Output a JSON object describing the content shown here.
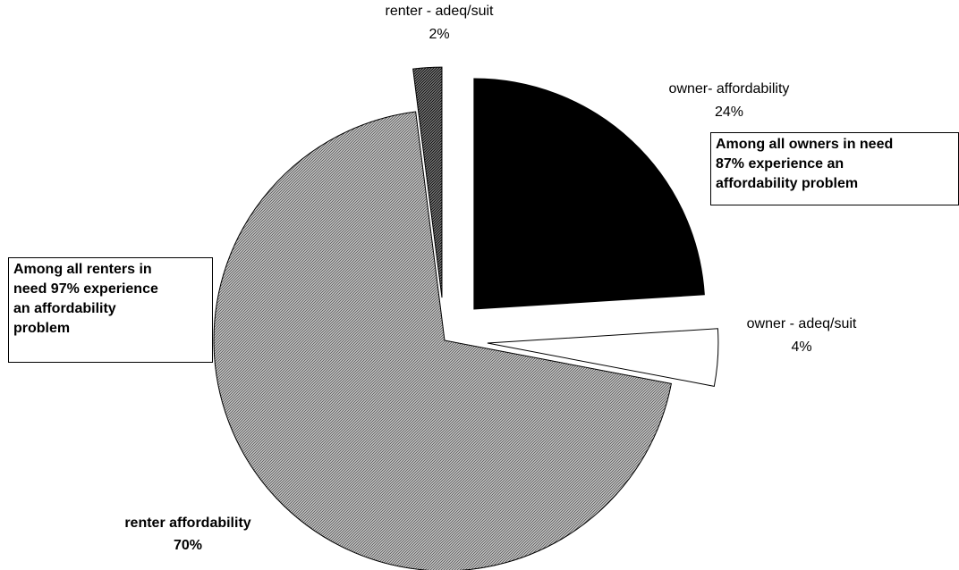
{
  "chart_data": {
    "type": "pie",
    "slices": [
      {
        "label": "owner- affordability",
        "value": 24,
        "value_label": "24%",
        "fill": "#000000",
        "pattern": "solid",
        "exploded": true
      },
      {
        "label": "owner - adeq/suit",
        "value": 4,
        "value_label": "4%",
        "fill": "#ffffff",
        "pattern": "solid",
        "exploded": true
      },
      {
        "label": "renter affordability",
        "value": 70,
        "value_label": "70%",
        "fill": "#808080",
        "pattern": "fine-diagonal-hatch",
        "exploded": false
      },
      {
        "label": "renter - adeq/suit",
        "value": 2,
        "value_label": "2%",
        "fill": "#444444",
        "pattern": "dense-diagonal-hatch",
        "exploded": true
      }
    ],
    "annotations": [
      {
        "id": "owners-note",
        "text": "Among all owners in need\n87% experience an\naffordability problem"
      },
      {
        "id": "renters-note",
        "text": "Among all renters in\nneed 97% experience\nan affordability\nproblem"
      }
    ],
    "legend": "none"
  }
}
